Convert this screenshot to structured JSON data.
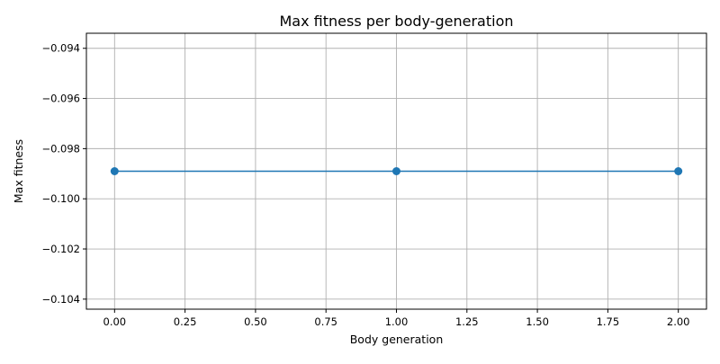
{
  "chart_data": {
    "type": "line",
    "title": "Max fitness per body-generation",
    "xlabel": "Body generation",
    "ylabel": "Max fitness",
    "x": [
      0,
      1,
      2
    ],
    "series": [
      {
        "values": [
          -0.0989,
          -0.0989,
          -0.0989
        ],
        "color": "#1f77b4",
        "marker": "circle"
      }
    ],
    "xlim": [
      -0.1,
      2.1
    ],
    "ylim": [
      -0.1044,
      -0.0934
    ],
    "xticks": [
      0.0,
      0.25,
      0.5,
      0.75,
      1.0,
      1.25,
      1.5,
      1.75,
      2.0
    ],
    "xtick_labels": [
      "0.00",
      "0.25",
      "0.50",
      "0.75",
      "1.00",
      "1.25",
      "1.50",
      "1.75",
      "2.00"
    ],
    "yticks": [
      -0.094,
      -0.096,
      -0.098,
      -0.1,
      -0.102,
      -0.104
    ],
    "ytick_labels": [
      "−0.094",
      "−0.096",
      "−0.098",
      "−0.100",
      "−0.102",
      "−0.104"
    ],
    "grid": true,
    "grid_color": "#b0b0b0"
  }
}
